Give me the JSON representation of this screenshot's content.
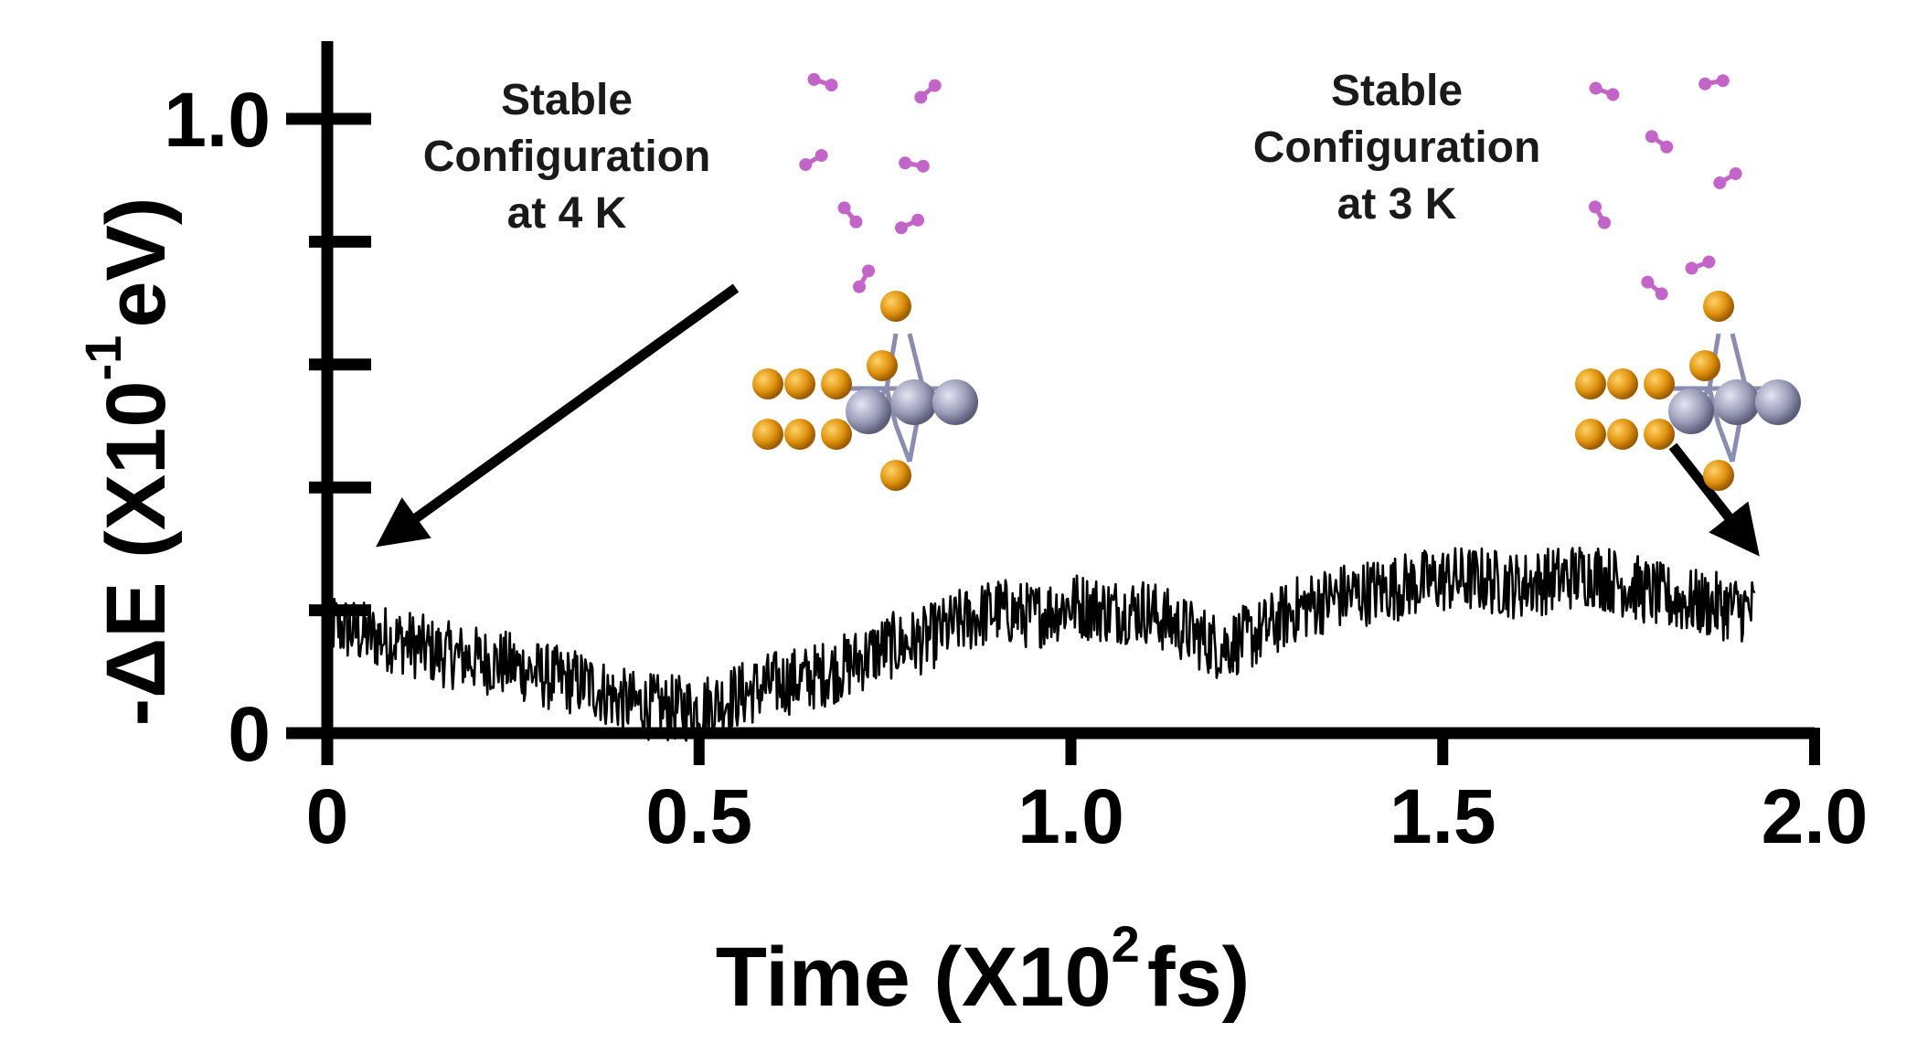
{
  "chart_data": {
    "type": "line",
    "xlabel": {
      "prefix": "Time (X10",
      "sup": "2",
      "suffix": "fs)"
    },
    "ylabel": {
      "prefix": "-ΔE (X10",
      "sup": "-1",
      "suffix": "eV)"
    },
    "xlim": [
      0,
      2.0
    ],
    "ylim": [
      0,
      1.0
    ],
    "xticks": [
      {
        "value": 0,
        "label": "0"
      },
      {
        "value": 0.5,
        "label": "0.5"
      },
      {
        "value": 1.0,
        "label": "1.0"
      },
      {
        "value": 1.5,
        "label": "1.5"
      },
      {
        "value": 2.0,
        "label": "2.0"
      }
    ],
    "yticks": [
      {
        "value": 0,
        "label": "0"
      },
      {
        "value": 0.2,
        "label": ""
      },
      {
        "value": 0.4,
        "label": ""
      },
      {
        "value": 0.6,
        "label": ""
      },
      {
        "value": 0.8,
        "label": ""
      },
      {
        "value": 1.0,
        "label": "1.0"
      }
    ],
    "series": [
      {
        "color": "#000000",
        "x": [
          0.0,
          0.05,
          0.1,
          0.15,
          0.2,
          0.25,
          0.3,
          0.35,
          0.4,
          0.45,
          0.5,
          0.55,
          0.6,
          0.65,
          0.7,
          0.75,
          0.8,
          0.85,
          0.9,
          0.95,
          1.0,
          1.05,
          1.1,
          1.15,
          1.2,
          1.25,
          1.3,
          1.35,
          1.4,
          1.45,
          1.5,
          1.55,
          1.6,
          1.65,
          1.7,
          1.75,
          1.8,
          1.85,
          1.92
        ],
        "y": [
          0.18,
          0.16,
          0.15,
          0.13,
          0.12,
          0.11,
          0.09,
          0.08,
          0.05,
          0.04,
          0.04,
          0.06,
          0.08,
          0.09,
          0.11,
          0.14,
          0.15,
          0.18,
          0.2,
          0.19,
          0.21,
          0.2,
          0.2,
          0.17,
          0.14,
          0.16,
          0.2,
          0.22,
          0.23,
          0.24,
          0.25,
          0.25,
          0.24,
          0.25,
          0.26,
          0.24,
          0.22,
          0.21,
          0.2
        ]
      }
    ],
    "annotations": [
      {
        "lines": [
          "Stable",
          "Configuration",
          "at 4 K"
        ],
        "target": [
          0.07,
          0.31
        ]
      },
      {
        "lines": [
          "Stable",
          "Configuration",
          "at 3 K"
        ],
        "target": [
          1.93,
          0.28
        ]
      }
    ]
  },
  "colors": {
    "sulfur": "#d4880a",
    "metal": "#a7a8c4",
    "molecule": "#c264c8",
    "line": "#000000"
  }
}
